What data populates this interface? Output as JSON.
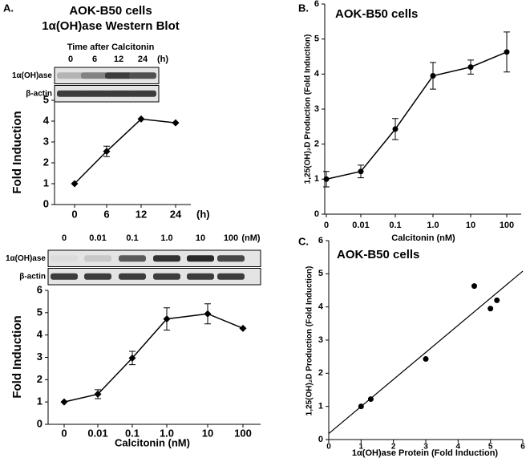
{
  "chart_data": [
    {
      "type": "line",
      "panel": "A.",
      "title": "AOK-B50 cells",
      "subtitle": "1α(OH)ase Western Blot",
      "blot_caption": "Time after Calcitonin",
      "blot_rows": [
        "1α(OH)ase",
        "β-actin"
      ],
      "blot_lanes": [
        "0",
        "6",
        "12",
        "24",
        "(h)"
      ],
      "categories": [
        "0",
        "6",
        "12",
        "24"
      ],
      "x_unit": "(h)",
      "values": [
        1,
        2.55,
        4.1,
        3.92
      ],
      "errors": [
        0,
        0.25,
        0,
        0
      ],
      "ylabel": "Fold Induction",
      "ylim": [
        0,
        5
      ],
      "yticks": [
        0,
        1,
        2,
        3,
        4,
        5
      ],
      "color": "#000000",
      "marker": "diamond"
    },
    {
      "type": "line",
      "blot_rows": [
        "1α(OH)ase",
        "β-actin"
      ],
      "blot_lanes": [
        "0",
        "0.01",
        "0.1",
        "1.0",
        "10",
        "100",
        "(nM)"
      ],
      "categories": [
        "0",
        "0.01",
        "0.1",
        "1.0",
        "10",
        "100"
      ],
      "values": [
        1,
        1.35,
        2.97,
        4.72,
        4.95,
        4.3
      ],
      "errors": [
        0,
        0.2,
        0.3,
        0.5,
        0.45,
        0
      ],
      "xlabel": "Calcitonin (nM)",
      "ylabel": "Fold Induction",
      "ylim": [
        0,
        6
      ],
      "yticks": [
        0,
        1,
        2,
        3,
        4,
        5,
        6
      ],
      "color": "#000000",
      "marker": "diamond"
    },
    {
      "type": "line",
      "panel": "B.",
      "title": "AOK-B50 cells",
      "categories": [
        "0",
        "0.01",
        "0.1",
        "1.0",
        "10",
        "100"
      ],
      "values": [
        1,
        1.22,
        2.43,
        3.95,
        4.2,
        4.63
      ],
      "errors": [
        0.22,
        0.18,
        0.3,
        0.38,
        0.2,
        0.57
      ],
      "xlabel": "Calcitonin (nM)",
      "ylabel": "1,25(OH)₂D Production (Fold Induction)",
      "ylim": [
        0,
        6
      ],
      "yticks": [
        0,
        1,
        2,
        3,
        4,
        5,
        6
      ],
      "color": "#000000",
      "marker": "circle"
    },
    {
      "type": "scatter",
      "panel": "C.",
      "title": "AOK-B50 cells",
      "x": [
        1,
        1.3,
        3,
        4.5,
        5,
        5.2
      ],
      "values": [
        1,
        1.22,
        2.43,
        4.63,
        3.95,
        4.2
      ],
      "trendline": {
        "x": [
          0,
          6
        ],
        "y": [
          0.18,
          5.08
        ]
      },
      "xlabel": "1α(OH)ase Protein (Fold Induction)",
      "ylabel": "1,25(OH)₂D Production (Fold Induction)",
      "xlim": [
        0,
        6
      ],
      "xticks": [
        0,
        1,
        2,
        3,
        4,
        5,
        6
      ],
      "ylim": [
        0,
        6
      ],
      "yticks": [
        0,
        1,
        2,
        3,
        4,
        5,
        6
      ],
      "color": "#000000",
      "marker": "circle"
    }
  ]
}
